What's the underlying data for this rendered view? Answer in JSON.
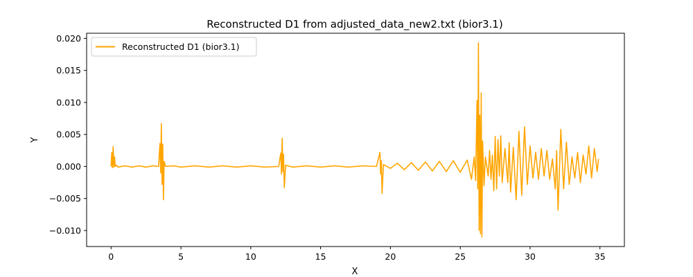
{
  "chart_data": {
    "type": "line",
    "title": "Reconstructed D1 from adjusted_data_new2.txt (bior3.1)",
    "xlabel": "X",
    "ylabel": "Y",
    "xlim": [
      -1.75,
      36.75
    ],
    "ylim": [
      -0.0125,
      0.0208
    ],
    "xticks": [
      0,
      5,
      10,
      15,
      20,
      25,
      30,
      35
    ],
    "yticks": [
      -0.01,
      -0.005,
      0.0,
      0.005,
      0.01,
      0.015,
      0.02
    ],
    "xtick_labels": [
      "0",
      "5",
      "10",
      "15",
      "20",
      "25",
      "30",
      "35"
    ],
    "ytick_labels": [
      "−0.010",
      "−0.005",
      "0.000",
      "0.005",
      "0.010",
      "0.015",
      "0.020"
    ],
    "grid": false,
    "legend_position": "top-left",
    "series": [
      {
        "name": "Reconstructed D1 (bior3.1)",
        "color": "#ffa500",
        "x": [
          0.0,
          0.05,
          0.1,
          0.15,
          0.2,
          0.25,
          0.3,
          0.4,
          0.5,
          1.0,
          1.5,
          2.0,
          2.5,
          3.0,
          3.4,
          3.5,
          3.55,
          3.6,
          3.65,
          3.7,
          3.75,
          3.8,
          3.9,
          4.5,
          5.0,
          6.0,
          7.0,
          8.0,
          9.0,
          10.0,
          11.0,
          12.0,
          12.15,
          12.2,
          12.25,
          12.3,
          12.35,
          12.4,
          12.5,
          13.0,
          14.0,
          15.0,
          16.0,
          17.0,
          18.0,
          19.0,
          19.25,
          19.3,
          19.35,
          19.4,
          19.5,
          20.0,
          20.5,
          21.0,
          21.5,
          22.0,
          22.5,
          23.0,
          23.5,
          24.0,
          24.5,
          25.0,
          25.5,
          25.8,
          26.0,
          26.1,
          26.2,
          26.25,
          26.3,
          26.35,
          26.4,
          26.45,
          26.5,
          26.55,
          26.6,
          26.7,
          26.8,
          27.0,
          27.1,
          27.2,
          27.3,
          27.4,
          27.5,
          27.6,
          27.7,
          27.8,
          27.9,
          28.0,
          28.2,
          28.4,
          28.5,
          28.6,
          28.8,
          29.0,
          29.2,
          29.4,
          29.6,
          29.8,
          30.0,
          30.2,
          30.4,
          30.6,
          30.8,
          31.0,
          31.2,
          31.4,
          31.6,
          31.8,
          31.9,
          32.0,
          32.2,
          32.4,
          32.6,
          32.8,
          33.0,
          33.2,
          33.4,
          33.6,
          33.8,
          34.0,
          34.2,
          34.4,
          34.6,
          34.8,
          34.9
        ],
        "y": [
          0.0,
          0.0022,
          -0.0002,
          0.0031,
          -0.0001,
          0.0015,
          0.0,
          0.0002,
          -0.0001,
          0.0001,
          -0.0001,
          0.0001,
          -0.0001,
          0.0001,
          0.0,
          0.0036,
          -0.001,
          0.0067,
          -0.0028,
          0.0035,
          -0.0052,
          0.0008,
          0.0,
          0.0001,
          -0.0001,
          0.0001,
          -0.0001,
          0.0001,
          -0.0001,
          0.0001,
          -0.0001,
          0.0,
          0.0021,
          -0.0012,
          0.0044,
          -0.0008,
          0.0019,
          -0.0033,
          0.0002,
          -0.0001,
          0.0001,
          -0.0001,
          0.0001,
          -0.0001,
          0.0001,
          0.0,
          0.0022,
          -0.0012,
          0.0009,
          -0.0042,
          0.0003,
          -0.0003,
          0.0005,
          -0.0005,
          0.0006,
          -0.0006,
          0.0007,
          -0.0007,
          0.0008,
          -0.0008,
          0.0009,
          -0.0009,
          0.001,
          -0.002,
          0.0015,
          -0.0022,
          0.0103,
          -0.0035,
          0.0193,
          -0.01,
          0.008,
          -0.0105,
          0.0115,
          -0.011,
          0.004,
          -0.003,
          0.0015,
          -0.0015,
          0.0025,
          -0.002,
          0.0018,
          -0.0038,
          0.0047,
          -0.0035,
          0.0042,
          -0.0015,
          0.0048,
          -0.0025,
          0.0028,
          -0.0025,
          0.0037,
          -0.004,
          0.003,
          -0.0052,
          0.0055,
          -0.0045,
          0.0062,
          -0.0028,
          0.0032,
          -0.0018,
          0.0022,
          -0.002,
          0.0028,
          -0.0015,
          0.0025,
          -0.002,
          0.0012,
          -0.0035,
          0.0025,
          -0.0068,
          0.0058,
          -0.0035,
          0.0038,
          -0.0028,
          0.0015,
          -0.0018,
          0.0022,
          -0.0025,
          0.0018,
          -0.0012,
          0.0032,
          -0.0018,
          0.0028,
          -0.0008,
          0.0012
        ]
      }
    ]
  }
}
